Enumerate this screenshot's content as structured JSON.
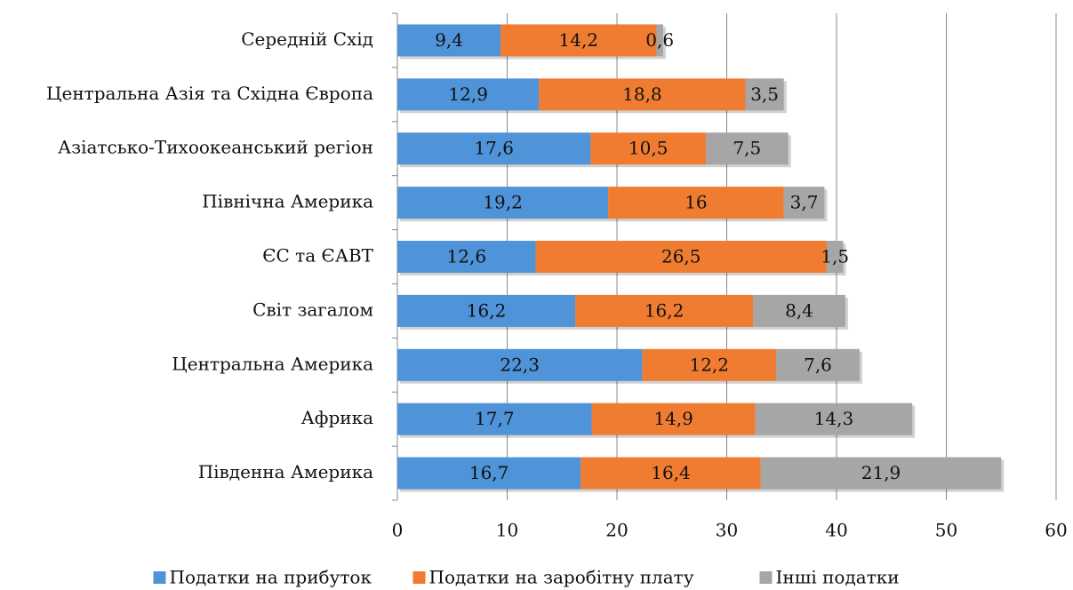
{
  "chart_data": {
    "type": "stacked-bar-horizontal",
    "categories": [
      "Середній Схід",
      "Центральна Азія та Східна Європа",
      "Азіатсько-Тихоокеанський регіон",
      "Північна Америка",
      "ЄС та ЄАВТ",
      "Світ загалом",
      "Центральна Америка",
      "Африка",
      "Південна Америка"
    ],
    "series": [
      {
        "name": "Податки на прибуток",
        "color": "#4f93d8",
        "values": [
          9.4,
          12.9,
          17.6,
          19.2,
          12.6,
          16.2,
          22.3,
          17.7,
          16.7
        ],
        "value_labels": [
          "9,4",
          "12,9",
          "17,6",
          "19,2",
          "12,6",
          "16,2",
          "22,3",
          "17,7",
          "16,7"
        ]
      },
      {
        "name": "Податки на заробітну плату",
        "color": "#ef7c30",
        "values": [
          14.2,
          18.8,
          10.5,
          16,
          26.5,
          16.2,
          12.2,
          14.9,
          16.4
        ],
        "value_labels": [
          "14,2",
          "18,8",
          "10,5",
          "16",
          "26,5",
          "16,2",
          "12,2",
          "14,9",
          "16,4"
        ]
      },
      {
        "name": "Інші податки",
        "color": "#a6a6a6",
        "values": [
          0.6,
          3.5,
          7.5,
          3.7,
          1.5,
          8.4,
          7.6,
          14.3,
          21.9
        ],
        "value_labels": [
          "0,6",
          "3,5",
          "7,5",
          "3,7",
          "1,5",
          "8,4",
          "7,6",
          "14,3",
          "21,9"
        ]
      }
    ],
    "xlim": [
      0,
      60
    ],
    "xticks": [
      0,
      10,
      20,
      30,
      40,
      50,
      60
    ],
    "grid": true,
    "legend": "bottom"
  }
}
